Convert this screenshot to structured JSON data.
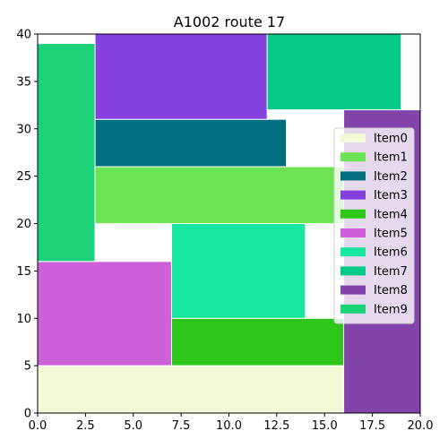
{
  "chart_data": {
    "type": "treemap",
    "title": "A1002 route 17",
    "xlim": [
      0,
      20
    ],
    "ylim": [
      0,
      40
    ],
    "x_ticks": [
      "0.0",
      "2.5",
      "5.0",
      "7.5",
      "10.0",
      "12.5",
      "15.0",
      "17.5",
      "20.0"
    ],
    "y_ticks": [
      "0",
      "5",
      "10",
      "15",
      "20",
      "25",
      "30",
      "35",
      "40"
    ],
    "legend_position": "right",
    "items": [
      {
        "name": "Item0",
        "color": "#f5f8d6",
        "x0": 0,
        "y0": 0,
        "x1": 16,
        "y1": 5
      },
      {
        "name": "Item1",
        "color": "#6be352",
        "x0": 3,
        "y0": 20,
        "x1": 16,
        "y1": 26
      },
      {
        "name": "Item2",
        "color": "#006f7f",
        "x0": 3,
        "y0": 26,
        "x1": 13,
        "y1": 31
      },
      {
        "name": "Item3",
        "color": "#8441dd",
        "x0": 3,
        "y0": 31,
        "x1": 12,
        "y1": 40
      },
      {
        "name": "Item4",
        "color": "#2fc61a",
        "x0": 7,
        "y0": 5,
        "x1": 16,
        "y1": 10
      },
      {
        "name": "Item5",
        "color": "#cd61da",
        "x0": 0,
        "y0": 5,
        "x1": 7,
        "y1": 16
      },
      {
        "name": "Item6",
        "color": "#17e6a1",
        "x0": 7,
        "y0": 10,
        "x1": 14,
        "y1": 20
      },
      {
        "name": "Item7",
        "color": "#03c98b",
        "x0": 12,
        "y0": 32,
        "x1": 19,
        "y1": 40
      },
      {
        "name": "Item8",
        "color": "#8244aa",
        "x0": 16,
        "y0": 0,
        "x1": 20,
        "y1": 32
      },
      {
        "name": "Item9",
        "color": "#1dd178",
        "x0": 0,
        "y0": 16,
        "x1": 3,
        "y1": 39
      }
    ]
  }
}
